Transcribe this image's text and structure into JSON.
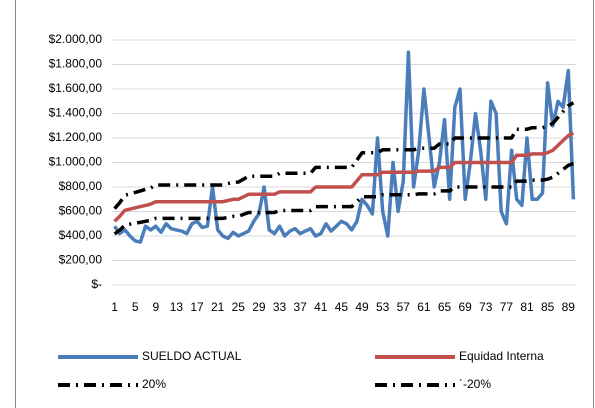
{
  "chart_data": {
    "type": "line",
    "categories": [
      1,
      null,
      null,
      null,
      5,
      null,
      null,
      null,
      9,
      null,
      null,
      null,
      13,
      null,
      null,
      null,
      17,
      null,
      null,
      null,
      21,
      null,
      null,
      null,
      25,
      null,
      null,
      null,
      29,
      null,
      null,
      null,
      33,
      null,
      null,
      null,
      37,
      null,
      null,
      null,
      41,
      null,
      null,
      null,
      45,
      null,
      null,
      null,
      49,
      null,
      null,
      null,
      53,
      null,
      null,
      null,
      57,
      null,
      null,
      null,
      61,
      null,
      null,
      null,
      65,
      null,
      null,
      null,
      69,
      null,
      null,
      null,
      73,
      null,
      null,
      null,
      77,
      null,
      null,
      null,
      81,
      null,
      null,
      null,
      85,
      null,
      null,
      null,
      89,
      null
    ],
    "ylim": [
      0,
      2000
    ],
    "yticks": [
      {
        "value": 0,
        "label": "$-"
      },
      {
        "value": 200,
        "label": "$200,00"
      },
      {
        "value": 400,
        "label": "$400,00"
      },
      {
        "value": 600,
        "label": "$600,00"
      },
      {
        "value": 800,
        "label": "$800,00"
      },
      {
        "value": 1000,
        "label": "$1.000,00"
      },
      {
        "value": 1200,
        "label": "$1.200,00"
      },
      {
        "value": 1400,
        "label": "$1.400,00"
      },
      {
        "value": 1600,
        "label": "$1.600,00"
      },
      {
        "value": 1800,
        "label": "$1.800,00"
      },
      {
        "value": 2000,
        "label": "$2.000,00"
      }
    ],
    "grid": true,
    "legend": "bottom",
    "series": [
      {
        "name": "SUELDO ACTUAL",
        "color": "#4a7ebb",
        "dash": "solid",
        "values": [
          480,
          420,
          450,
          400,
          360,
          350,
          480,
          450,
          480,
          430,
          500,
          460,
          450,
          440,
          420,
          500,
          520,
          470,
          480,
          800,
          450,
          400,
          380,
          430,
          400,
          420,
          440,
          520,
          580,
          800,
          450,
          420,
          480,
          400,
          440,
          460,
          420,
          440,
          460,
          400,
          420,
          500,
          440,
          480,
          520,
          500,
          450,
          520,
          700,
          650,
          580,
          1200,
          600,
          400,
          1000,
          600,
          850,
          1900,
          800,
          1100,
          1600,
          1200,
          800,
          1000,
          1350,
          700,
          1450,
          1600,
          700,
          1000,
          1400,
          1100,
          700,
          1500,
          1400,
          600,
          500,
          1100,
          700,
          650,
          1200,
          700,
          700,
          750,
          1650,
          1300,
          1500,
          1450,
          1750,
          700
        ]
      },
      {
        "name": "Equidad Interna",
        "color": "#c0504d",
        "dash": "solid",
        "values": [
          520,
          560,
          610,
          620,
          630,
          640,
          650,
          660,
          680,
          680,
          680,
          680,
          680,
          680,
          680,
          680,
          680,
          680,
          680,
          680,
          680,
          680,
          690,
          700,
          700,
          720,
          740,
          740,
          740,
          740,
          740,
          740,
          760,
          760,
          760,
          760,
          760,
          760,
          760,
          800,
          800,
          800,
          800,
          800,
          800,
          800,
          800,
          850,
          900,
          900,
          900,
          900,
          920,
          920,
          920,
          920,
          920,
          920,
          920,
          930,
          930,
          930,
          930,
          960,
          960,
          960,
          1000,
          1000,
          1000,
          1000,
          1000,
          1000,
          1000,
          1000,
          1000,
          1000,
          1000,
          1000,
          1060,
          1060,
          1060,
          1070,
          1070,
          1070,
          1080,
          1100,
          1140,
          1180,
          1220,
          1240
        ]
      },
      {
        "name": "20%",
        "color": "#000000",
        "dash": "dashdot",
        "values": [
          624,
          672,
          732,
          744,
          756,
          768,
          780,
          792,
          816,
          816,
          816,
          816,
          816,
          816,
          816,
          816,
          816,
          816,
          816,
          816,
          816,
          816,
          828,
          840,
          840,
          864,
          888,
          888,
          888,
          888,
          888,
          888,
          912,
          912,
          912,
          912,
          912,
          912,
          912,
          960,
          960,
          960,
          960,
          960,
          960,
          960,
          960,
          1020,
          1080,
          1080,
          1080,
          1080,
          1104,
          1104,
          1104,
          1104,
          1104,
          1104,
          1104,
          1116,
          1116,
          1116,
          1116,
          1152,
          1152,
          1152,
          1200,
          1200,
          1200,
          1200,
          1200,
          1200,
          1200,
          1200,
          1200,
          1200,
          1200,
          1200,
          1272,
          1272,
          1272,
          1284,
          1284,
          1284,
          1296,
          1320,
          1368,
          1416,
          1464,
          1488
        ]
      },
      {
        "name": "´-20%",
        "color": "#000000",
        "dash": "dashdot",
        "values": [
          416,
          448,
          488,
          496,
          504,
          512,
          520,
          528,
          544,
          544,
          544,
          544,
          544,
          544,
          544,
          544,
          544,
          544,
          544,
          544,
          544,
          544,
          552,
          560,
          560,
          576,
          592,
          592,
          592,
          592,
          592,
          592,
          608,
          608,
          608,
          608,
          608,
          608,
          608,
          640,
          640,
          640,
          640,
          640,
          640,
          640,
          640,
          680,
          720,
          720,
          720,
          720,
          736,
          736,
          736,
          736,
          736,
          736,
          736,
          744,
          744,
          744,
          744,
          768,
          768,
          768,
          800,
          800,
          800,
          800,
          800,
          800,
          800,
          800,
          800,
          800,
          800,
          800,
          848,
          848,
          848,
          856,
          856,
          856,
          864,
          880,
          912,
          944,
          976,
          992
        ]
      }
    ]
  }
}
